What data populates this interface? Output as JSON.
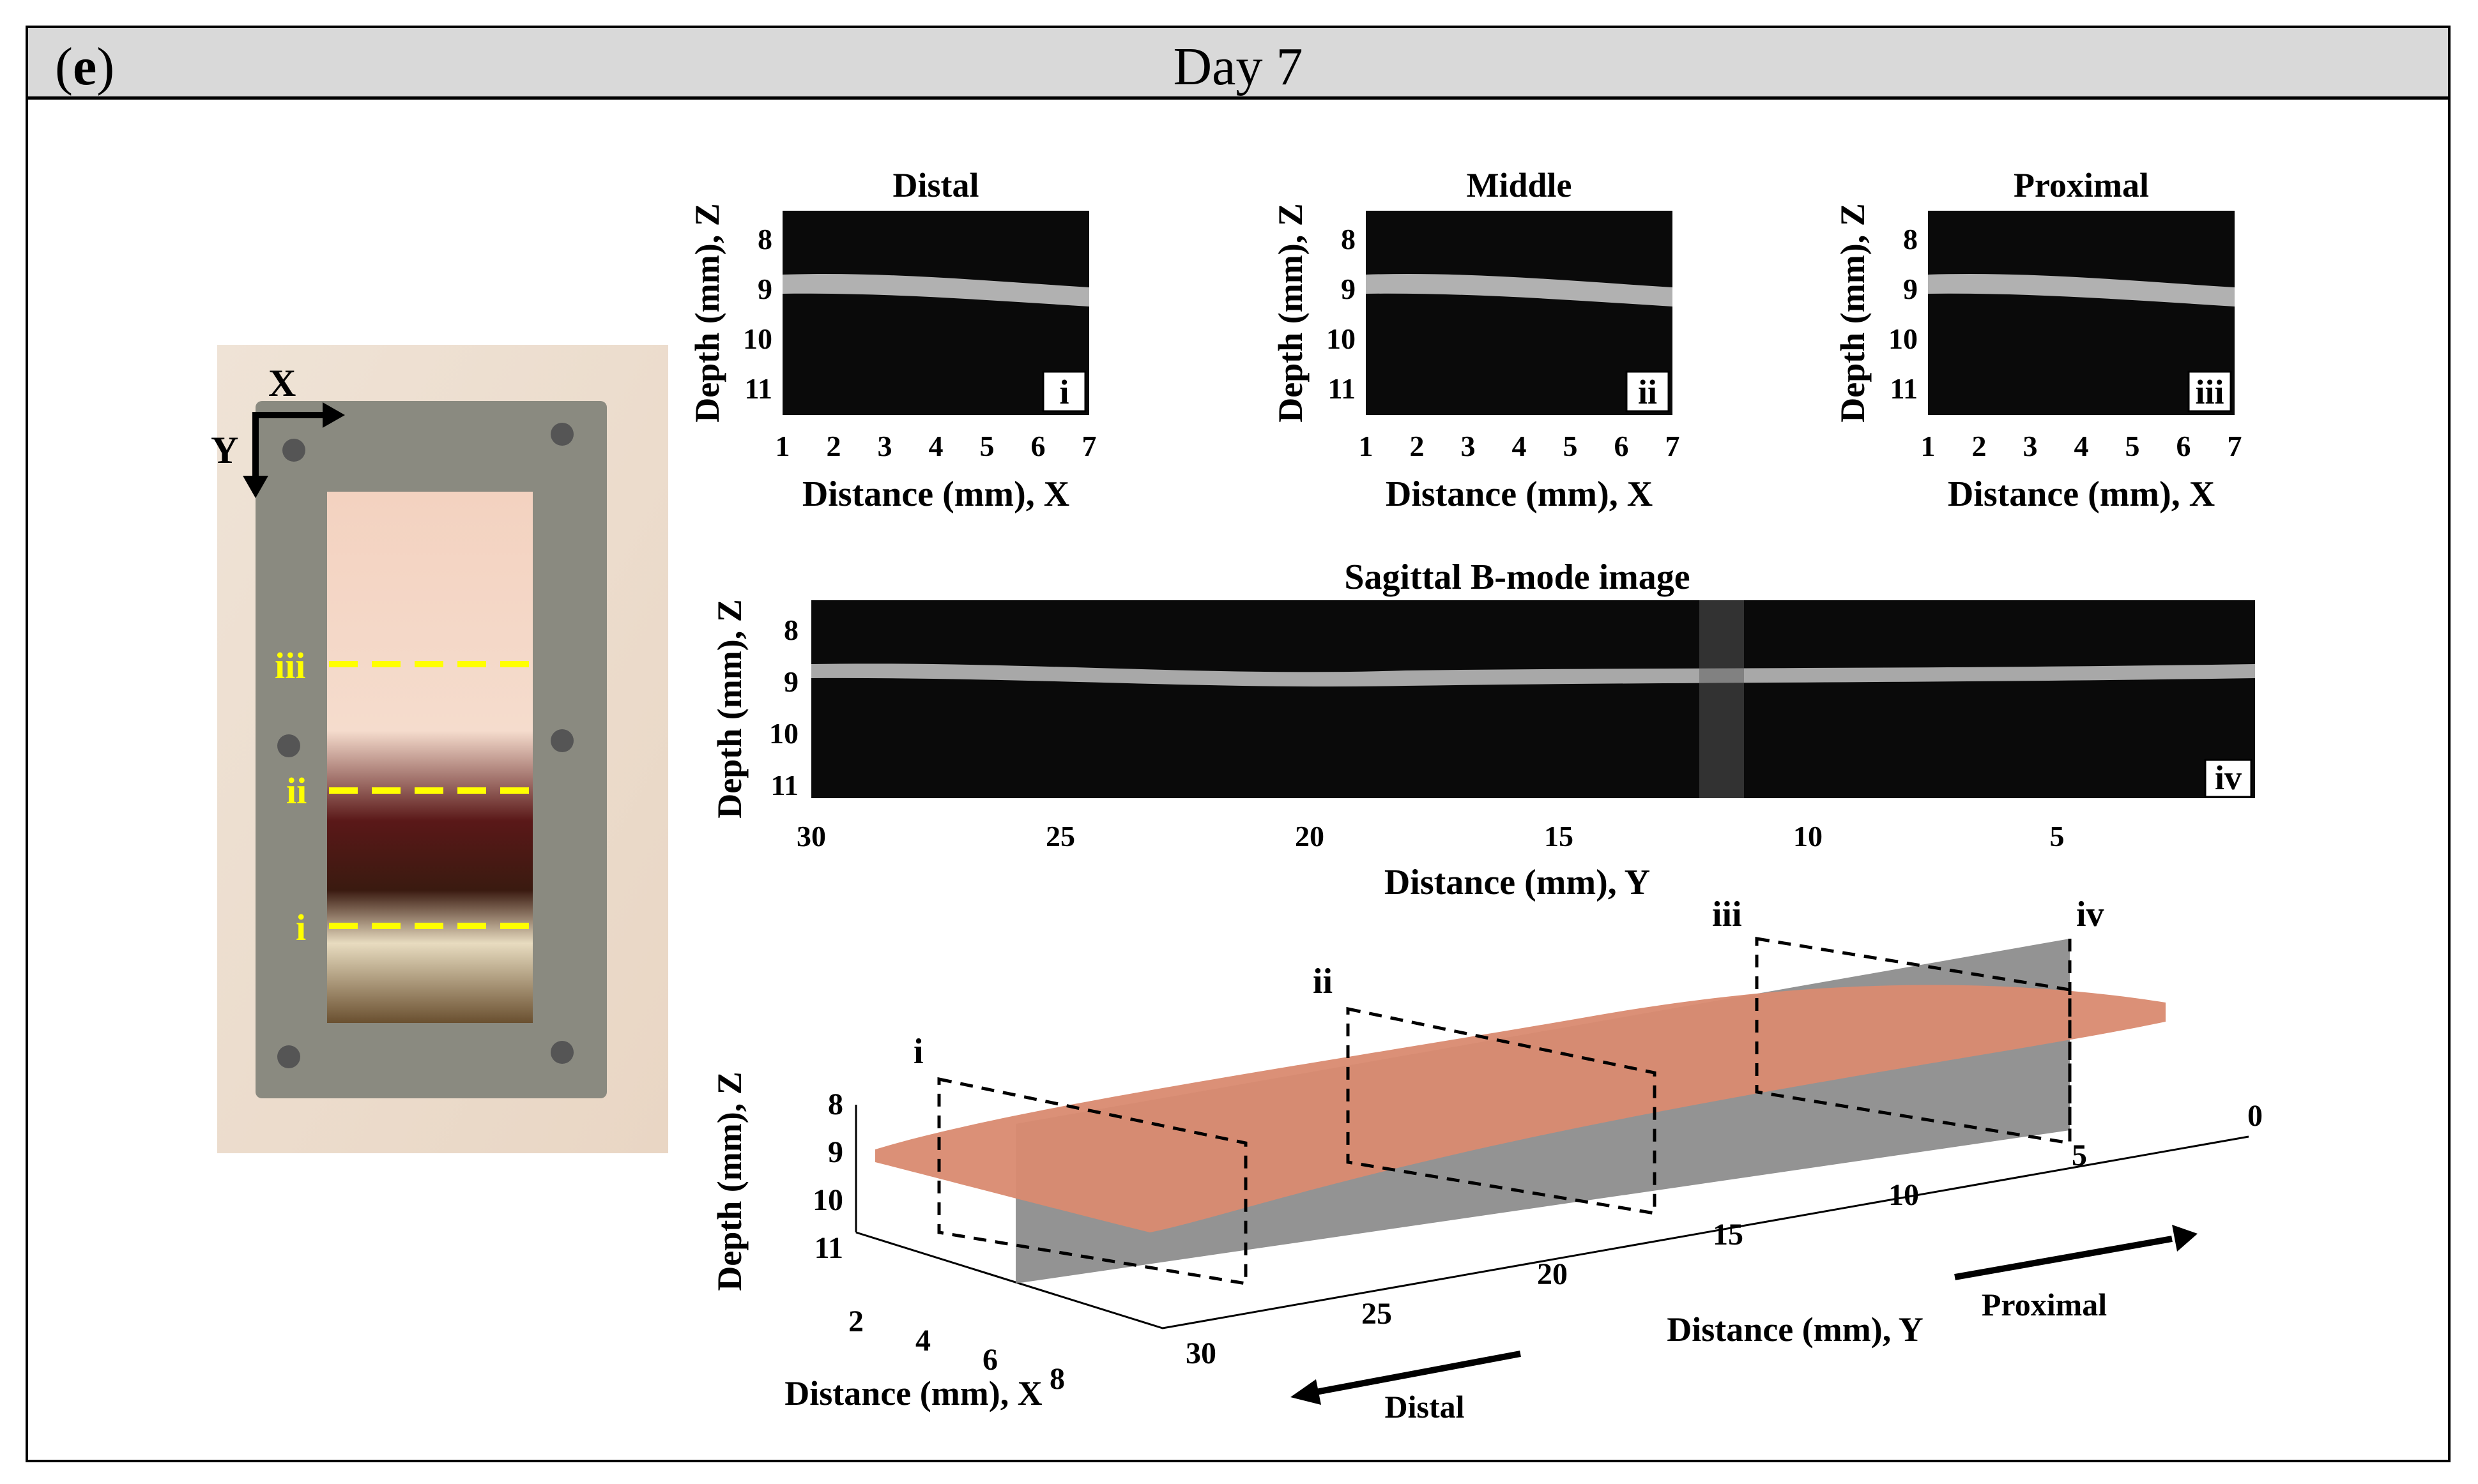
{
  "header": {
    "panel_letter": "e",
    "title": "Day 7"
  },
  "photo": {
    "axis_x": "X",
    "axis_y": "Y",
    "lines": [
      {
        "label": "iii"
      },
      {
        "label": "ii"
      },
      {
        "label": "i"
      }
    ],
    "line_color": "#ffff00"
  },
  "bmode_small": [
    {
      "title": "Distal",
      "tag": "i"
    },
    {
      "title": "Middle",
      "tag": "ii"
    },
    {
      "title": "Proximal",
      "tag": "iii"
    }
  ],
  "bmode_axes": {
    "ylabel": "Depth (mm), Z",
    "xlabel": "Distance (mm), X",
    "yticks": [
      "8",
      "9",
      "10",
      "11"
    ],
    "xticks": [
      "1",
      "2",
      "3",
      "4",
      "5",
      "6",
      "7"
    ]
  },
  "sagittal": {
    "title": "Sagittal B-mode image",
    "tag": "iv",
    "ylabel": "Depth (mm), Z",
    "xlabel": "Distance (mm), Y",
    "yticks": [
      "8",
      "9",
      "10",
      "11"
    ],
    "xticks": [
      "30",
      "25",
      "20",
      "15",
      "10",
      "5"
    ]
  },
  "render3d": {
    "plane_labels": [
      "i",
      "ii",
      "iii",
      "iv"
    ],
    "ylabel": "Depth (mm), Z",
    "zticks": [
      "8",
      "9",
      "10",
      "11"
    ],
    "xlabel": "Distance (mm), X",
    "xticks": [
      "2",
      "4",
      "6",
      "8"
    ],
    "ylabel2": "Distance (mm), Y",
    "yticks": [
      "30",
      "25",
      "20",
      "15",
      "10",
      "5",
      "0"
    ],
    "arrow_distal": "Distal",
    "arrow_proximal": "Proximal",
    "tissue_color": "#d98a70",
    "plane_color": "#808080"
  }
}
